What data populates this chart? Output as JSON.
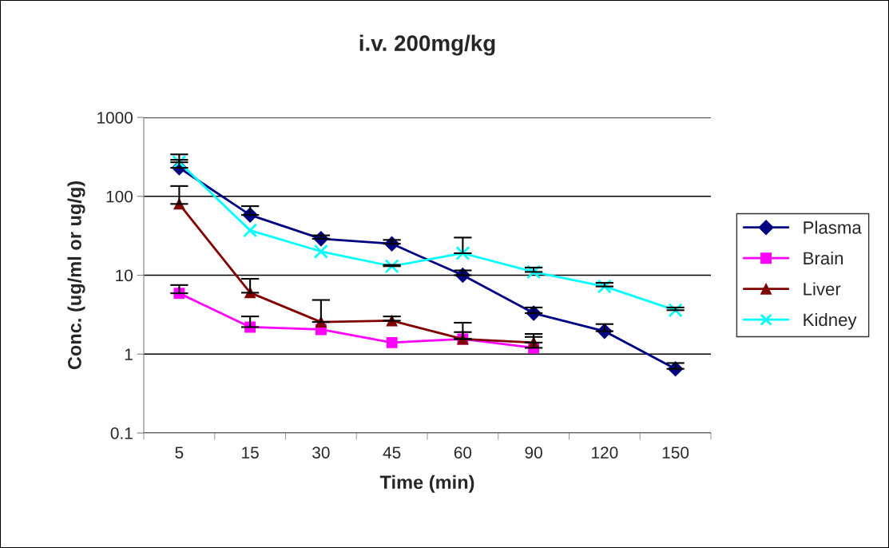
{
  "chart_data": {
    "type": "line",
    "title": "i.v. 200mg/kg",
    "xlabel": "Time (min)",
    "ylabel": "Conc. (ug/ml or ug/g)",
    "categories": [
      "5",
      "15",
      "30",
      "45",
      "60",
      "90",
      "120",
      "150"
    ],
    "log": "y",
    "ylim": [
      0.1,
      1000
    ],
    "yticks": [
      0.1,
      1,
      10,
      100,
      1000
    ],
    "grid": "y",
    "legend": "right",
    "series": [
      {
        "name": "Plasma",
        "color": "#000080",
        "marker": "diamond",
        "values": [
          230,
          58,
          29,
          25,
          10,
          3.3,
          1.95,
          0.65
        ],
        "errors": [
          [
            230,
            340
          ],
          [
            58,
            75
          ],
          [
            29,
            32
          ],
          [
            25,
            28
          ],
          [
            10,
            11.5
          ],
          [
            3.3,
            3.9
          ],
          [
            1.95,
            2.4
          ],
          [
            0.65,
            0.77
          ]
        ]
      },
      {
        "name": "Brain",
        "color": "#ff00ff",
        "marker": "square",
        "values": [
          5.9,
          2.2,
          2.05,
          1.4,
          1.55,
          1.2,
          null,
          null
        ],
        "errors": [
          [
            5.9,
            7.5
          ],
          [
            2.2,
            3.0
          ],
          null,
          null,
          [
            1.55,
            1.9
          ],
          [
            1.2,
            1.65
          ],
          null,
          null
        ]
      },
      {
        "name": "Liver",
        "color": "#800000",
        "marker": "triangle",
        "values": [
          80,
          6.0,
          2.55,
          2.65,
          1.55,
          1.4,
          null,
          null
        ],
        "errors": [
          [
            80,
            135
          ],
          [
            6.0,
            9.0
          ],
          [
            2.55,
            4.85
          ],
          [
            2.65,
            3.0
          ],
          [
            1.55,
            2.5
          ],
          [
            1.4,
            1.8
          ],
          null,
          null
        ]
      },
      {
        "name": "Kidney",
        "color": "#00ffff",
        "marker": "cross",
        "values": [
          270,
          37,
          20,
          13,
          19,
          11,
          7.2,
          3.6
        ],
        "errors": [
          [
            270,
            290
          ],
          null,
          null,
          [
            13,
            13.5
          ],
          [
            19,
            30
          ],
          [
            11,
            12.5
          ],
          [
            7.2,
            8.0
          ],
          [
            3.6,
            3.9
          ]
        ]
      }
    ]
  }
}
